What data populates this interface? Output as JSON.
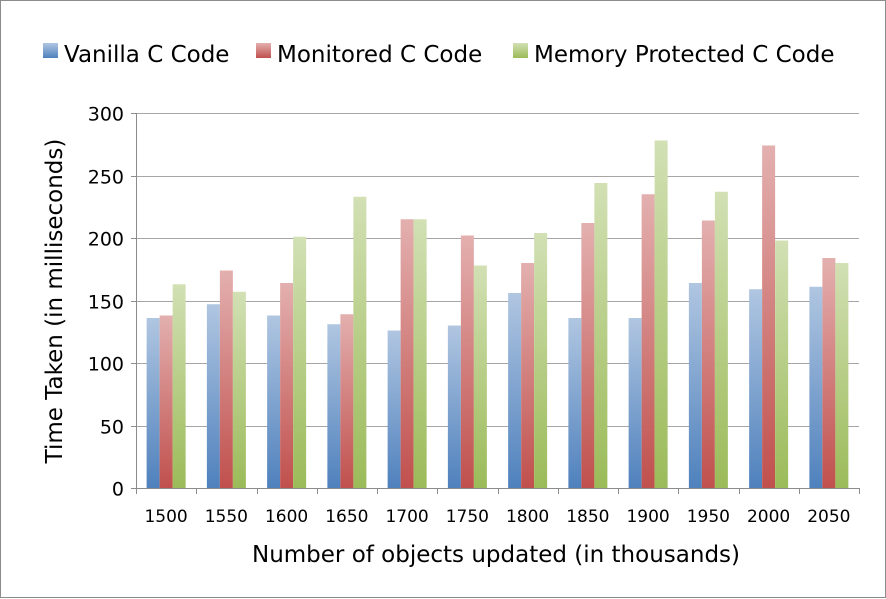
{
  "chart_data": {
    "type": "bar",
    "xlabel": "Number of objects updated (in thousands)",
    "ylabel": "Time Taken (in milliseconds)",
    "ylim": [
      0,
      300
    ],
    "yticks": [
      "0",
      "50",
      "100",
      "150",
      "200",
      "250",
      "300"
    ],
    "grid": "horizontal",
    "legend_position": "top",
    "categories": [
      "1500",
      "1550",
      "1600",
      "1650",
      "1700",
      "1750",
      "1800",
      "1850",
      "1900",
      "1950",
      "2000",
      "2050"
    ],
    "series": [
      {
        "name": "Vanilla C Code",
        "color": "#4f81bd",
        "values": [
          136,
          147,
          138,
          131,
          126,
          130,
          156,
          136,
          136,
          164,
          159,
          161
        ]
      },
      {
        "name": "Monitored C Code",
        "color": "#c0504d",
        "values": [
          138,
          174,
          164,
          139,
          215,
          202,
          180,
          212,
          235,
          214,
          274,
          184
        ]
      },
      {
        "name": "Memory Protected C Code",
        "color": "#9bbb59",
        "values": [
          163,
          157,
          201,
          233,
          215,
          178,
          204,
          244,
          278,
          237,
          198,
          180
        ]
      }
    ]
  }
}
